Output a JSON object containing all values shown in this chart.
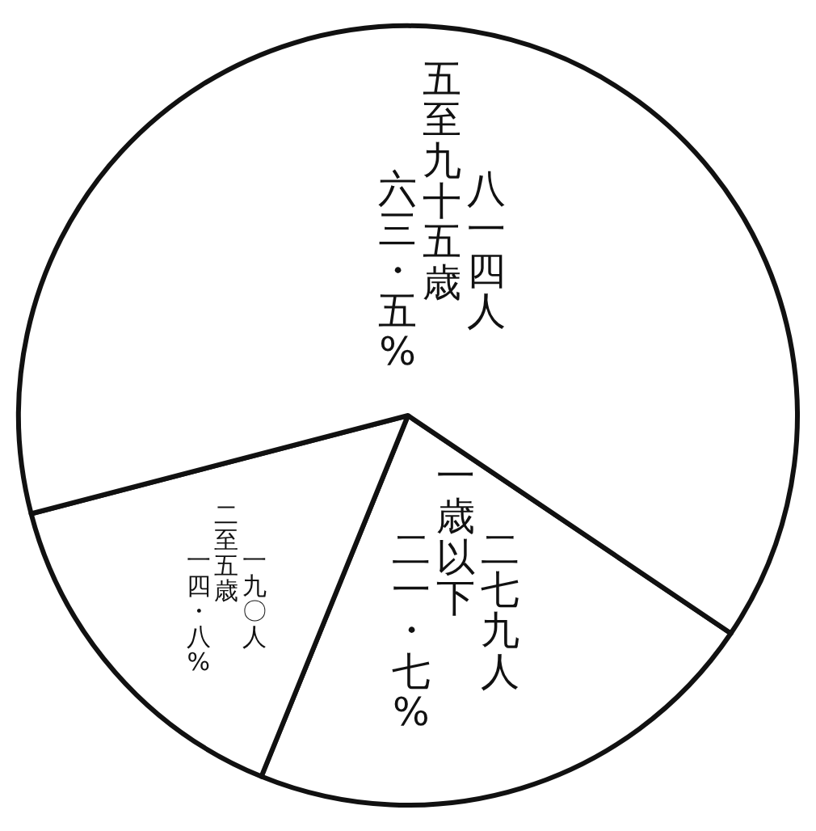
{
  "chart_data": {
    "type": "pie",
    "categories": [
      "一歳以下",
      "二至五歳",
      "五至九十五歳"
    ],
    "values": [
      21.7,
      14.8,
      63.5
    ],
    "colors": [
      "#ffffff",
      "#ffffff",
      "#ffffff"
    ],
    "value_labels": [
      "二一・七%",
      "一四・八%",
      "六三・五%"
    ],
    "annotations": [
      "二七九人",
      "一九〇人",
      "八一四人"
    ],
    "legend": false
  }
}
